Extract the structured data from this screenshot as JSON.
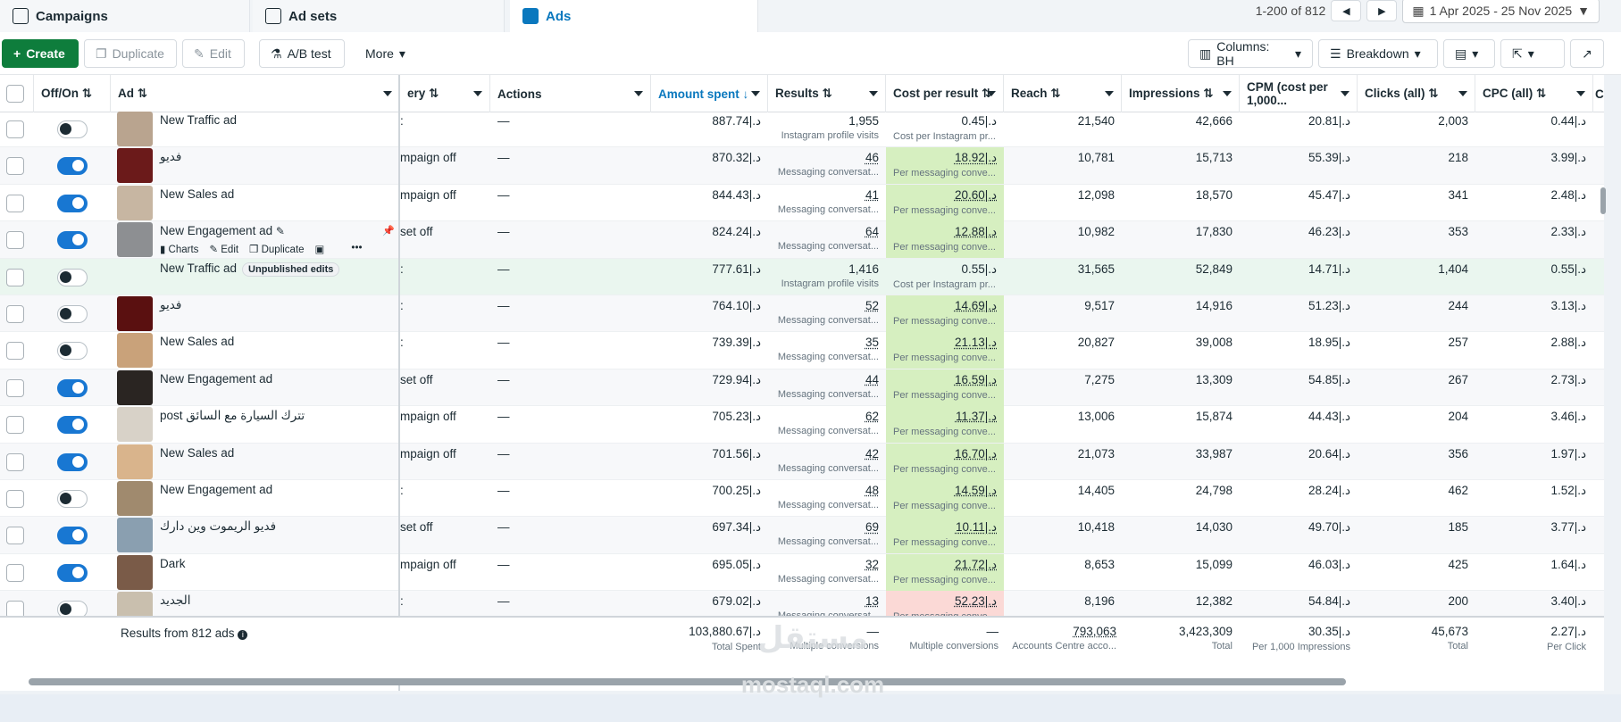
{
  "tabs": [
    {
      "label": "Campaigns",
      "icon": "campaigns-icon"
    },
    {
      "label": "Ad sets",
      "icon": "adsets-icon"
    },
    {
      "label": "Ads",
      "icon": "ads-icon"
    }
  ],
  "pager": {
    "range": "1-200 of 812",
    "date": "1 Apr 2025 - 25 Nov 2025"
  },
  "toolbar": {
    "create": "Create",
    "duplicate": "Duplicate",
    "edit": "Edit",
    "ab_test": "A/B test",
    "more": "More",
    "columns": "Columns: BH",
    "breakdown": "Breakdown"
  },
  "headers": {
    "offon": "Off/On ⇅",
    "ad": "Ad ⇅",
    "delivery": "ery ⇅",
    "actions": "Actions",
    "amount": "Amount spent ↓",
    "results": "Results ⇅",
    "cpr": "Cost per result ⇅",
    "reach": "Reach ⇅",
    "impressions": "Impressions ⇅",
    "cpm": "CPM (cost per 1,000...",
    "clicks": "Clicks (all) ⇅",
    "cpc": "CPC (all) ⇅",
    "ct": "C"
  },
  "rows": [
    {
      "on": false,
      "name": "New Traffic ad",
      "delivery": ":",
      "actions": "—",
      "amount": "887.74|.د",
      "results": "1,955",
      "rsub": "Instagram profile visits",
      "cpr": "0.45|.د",
      "cprsub": "Cost per Instagram pr...",
      "cprc": "none",
      "reach": "21,540",
      "impr": "42,666",
      "cpm": "20.81|.د",
      "clicks": "2,003",
      "cpc": "0.44|.د",
      "thumb": "#b9a48f"
    },
    {
      "on": true,
      "name": "فديو",
      "delivery": "mpaign off",
      "actions": "—",
      "amount": "870.32|.د",
      "results": "46",
      "rsub": "Messaging conversat...",
      "cpr": "18.92|.د",
      "cprsub": "Per messaging conve...",
      "cprc": "g",
      "reach": "10,781",
      "impr": "15,713",
      "cpm": "55.39|.د",
      "clicks": "218",
      "cpc": "3.99|.د",
      "thumb": "#6b1a1a"
    },
    {
      "on": true,
      "name": "New Sales ad",
      "delivery": "mpaign off",
      "actions": "—",
      "amount": "844.43|.د",
      "results": "41",
      "rsub": "Messaging conversat...",
      "cpr": "20.60|.د",
      "cprsub": "Per messaging conve...",
      "cprc": "g",
      "reach": "12,098",
      "impr": "18,570",
      "cpm": "45.47|.د",
      "clicks": "341",
      "cpc": "2.48|.د",
      "thumb": "#c7b6a2"
    },
    {
      "on": true,
      "name": "New Engagement ad",
      "delivery": "set off",
      "actions": "—",
      "amount": "824.24|.د",
      "results": "64",
      "rsub": "Messaging conversat...",
      "cpr": "12.88|.د",
      "cprsub": "Per messaging conve...",
      "cprc": "g",
      "reach": "10,982",
      "impr": "17,830",
      "cpm": "46.23|.د",
      "clicks": "353",
      "cpc": "2.33|.د",
      "thumb": "#8d8f92",
      "hover": true
    },
    {
      "on": false,
      "name": "New Traffic ad",
      "delivery": ":",
      "actions": "—",
      "amount": "777.61|.د",
      "results": "1,416",
      "rsub": "Instagram profile visits",
      "cpr": "0.55|.د",
      "cprsub": "Cost per Instagram pr...",
      "cprc": "none",
      "reach": "31,565",
      "impr": "52,849",
      "cpm": "14.71|.د",
      "clicks": "1,404",
      "cpc": "0.55|.د",
      "thumb": "none",
      "badge": "Unpublished edits"
    },
    {
      "on": false,
      "name": "فديو",
      "delivery": ":",
      "actions": "—",
      "amount": "764.10|.د",
      "results": "52",
      "rsub": "Messaging conversat...",
      "cpr": "14.69|.د",
      "cprsub": "Per messaging conve...",
      "cprc": "g",
      "reach": "9,517",
      "impr": "14,916",
      "cpm": "51.23|.د",
      "clicks": "244",
      "cpc": "3.13|.د",
      "thumb": "#5a1010"
    },
    {
      "on": false,
      "name": "New Sales ad",
      "delivery": ":",
      "actions": "—",
      "amount": "739.39|.د",
      "results": "35",
      "rsub": "Messaging conversat...",
      "cpr": "21.13|.د",
      "cprsub": "Per messaging conve...",
      "cprc": "g",
      "reach": "20,827",
      "impr": "39,008",
      "cpm": "18.95|.د",
      "clicks": "257",
      "cpc": "2.88|.د",
      "thumb": "#c9a27a"
    },
    {
      "on": true,
      "name": "New Engagement ad",
      "delivery": "set off",
      "actions": "—",
      "amount": "729.94|.د",
      "results": "44",
      "rsub": "Messaging conversat...",
      "cpr": "16.59|.د",
      "cprsub": "Per messaging conve...",
      "cprc": "g",
      "reach": "7,275",
      "impr": "13,309",
      "cpm": "54.85|.د",
      "clicks": "267",
      "cpc": "2.73|.د",
      "thumb": "#2a2522"
    },
    {
      "on": true,
      "name": "post تترك السيارة مع السائق",
      "delivery": "mpaign off",
      "actions": "—",
      "amount": "705.23|.د",
      "results": "62",
      "rsub": "Messaging conversat...",
      "cpr": "11.37|.د",
      "cprsub": "Per messaging conve...",
      "cprc": "g",
      "reach": "13,006",
      "impr": "15,874",
      "cpm": "44.43|.د",
      "clicks": "204",
      "cpc": "3.46|.د",
      "thumb": "#d8d2c8"
    },
    {
      "on": true,
      "name": "New Sales ad",
      "delivery": "mpaign off",
      "actions": "—",
      "amount": "701.56|.د",
      "results": "42",
      "rsub": "Messaging conversat...",
      "cpr": "16.70|.د",
      "cprsub": "Per messaging conve...",
      "cprc": "g",
      "reach": "21,073",
      "impr": "33,987",
      "cpm": "20.64|.د",
      "clicks": "356",
      "cpc": "1.97|.د",
      "thumb": "#d9b48c"
    },
    {
      "on": false,
      "name": "New Engagement ad",
      "delivery": ":",
      "actions": "—",
      "amount": "700.25|.د",
      "results": "48",
      "rsub": "Messaging conversat...",
      "cpr": "14.59|.د",
      "cprsub": "Per messaging conve...",
      "cprc": "g",
      "reach": "14,405",
      "impr": "24,798",
      "cpm": "28.24|.د",
      "clicks": "462",
      "cpc": "1.52|.د",
      "thumb": "#a08a6e"
    },
    {
      "on": true,
      "name": "فديو الريموت وين دارك",
      "delivery": "set off",
      "actions": "—",
      "amount": "697.34|.د",
      "results": "69",
      "rsub": "Messaging conversat...",
      "cpr": "10.11|.د",
      "cprsub": "Per messaging conve...",
      "cprc": "g",
      "reach": "10,418",
      "impr": "14,030",
      "cpm": "49.70|.د",
      "clicks": "185",
      "cpc": "3.77|.د",
      "thumb": "#8a9fb0"
    },
    {
      "on": true,
      "name": "Dark",
      "delivery": "mpaign off",
      "actions": "—",
      "amount": "695.05|.د",
      "results": "32",
      "rsub": "Messaging conversat...",
      "cpr": "21.72|.د",
      "cprsub": "Per messaging conve...",
      "cprc": "g",
      "reach": "8,653",
      "impr": "15,099",
      "cpm": "46.03|.د",
      "clicks": "425",
      "cpc": "1.64|.د",
      "thumb": "#7a5b48"
    },
    {
      "on": false,
      "name": "الجديد",
      "delivery": ":",
      "actions": "—",
      "amount": "679.02|.د",
      "results": "13",
      "rsub": "Messaging conversat...",
      "cpr": "52.23|.د",
      "cprsub": "Per messaging conve...",
      "cprc": "r",
      "reach": "8,196",
      "impr": "12,382",
      "cpm": "54.84|.د",
      "clicks": "200",
      "cpc": "3.40|.د",
      "thumb": "#c9bfae"
    }
  ],
  "hover_actions": {
    "charts": "Charts",
    "edit": "Edit",
    "duplicate": "Duplicate"
  },
  "footer": {
    "label": "Results from 812 ads",
    "amount": "103,880.67|.د",
    "amount_sub": "Total Spent",
    "results": "—",
    "results_sub": "Multiple conversions",
    "cpr": "—",
    "cpr_sub": "Multiple conversions",
    "reach": "793,063",
    "reach_sub": "Accounts Centre acco...",
    "impr": "3,423,309",
    "impr_sub": "Total",
    "cpm": "30.35|.د",
    "cpm_sub": "Per 1,000 Impressions",
    "clicks": "45,673",
    "clicks_sub": "Total",
    "cpc": "2.27|.د",
    "cpc_sub": "Per Click"
  },
  "watermark": {
    "ar": "مستقل",
    "en": "mostaql.com"
  },
  "colors": {
    "accent": "#0a78be",
    "create": "#0e7d3c",
    "green_cell": "#d6efc0",
    "red_cell": "#fbd9d6"
  }
}
